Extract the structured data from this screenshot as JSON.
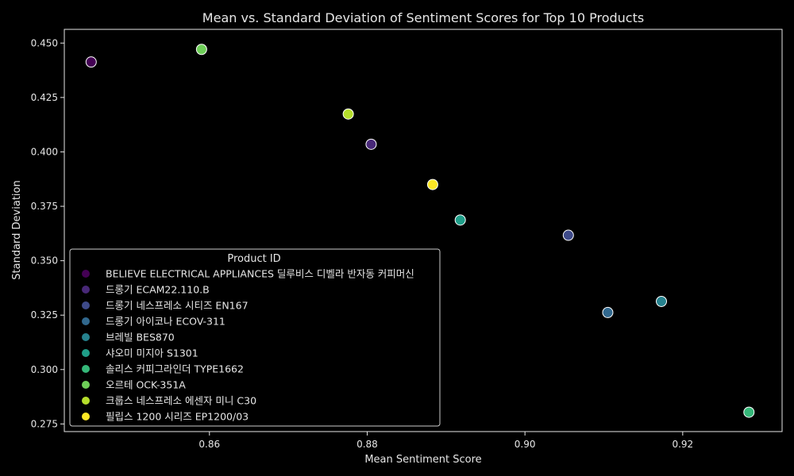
{
  "chart_data": {
    "type": "scatter",
    "title": "Mean vs. Standard Deviation of Sentiment Scores for Top 10 Products",
    "xlabel": "Mean Sentiment Score",
    "ylabel": "Standard Deviation",
    "xlim": [
      0.8416,
      0.9326
    ],
    "ylim": [
      0.2715,
      0.4563
    ],
    "x_ticks": [
      0.86,
      0.88,
      0.9,
      0.92
    ],
    "x_tick_labels": [
      "0.86",
      "0.88",
      "0.90",
      "0.92"
    ],
    "y_ticks": [
      0.275,
      0.3,
      0.325,
      0.35,
      0.375,
      0.4,
      0.425,
      0.45
    ],
    "y_tick_labels": [
      "0.275",
      "0.300",
      "0.325",
      "0.350",
      "0.375",
      "0.400",
      "0.425",
      "0.450"
    ],
    "grid": false,
    "legend_title": "Product ID",
    "legend_position": "bottom-left",
    "series": [
      {
        "name": "BELIEVE ELECTRICAL APPLIANCES 딜루비스 디벨라 반자동 커피머신",
        "color": "#440154",
        "x": [
          0.845
        ],
        "y": [
          0.4413
        ]
      },
      {
        "name": "드롱기 ECAM22.110.B",
        "color": "#482878",
        "x": [
          0.8805
        ],
        "y": [
          0.4035
        ]
      },
      {
        "name": "드롱기 네스프레소 시티즈 EN167",
        "color": "#3e4a89",
        "x": [
          0.9055
        ],
        "y": [
          0.3617
        ]
      },
      {
        "name": "드롱기 아이코나 ECOV-311",
        "color": "#31688e",
        "x": [
          0.9105
        ],
        "y": [
          0.3262
        ]
      },
      {
        "name": "브레빌 BES870",
        "color": "#26828e",
        "x": [
          0.9173
        ],
        "y": [
          0.3313
        ]
      },
      {
        "name": "샤오미 미지아 S1301",
        "color": "#1f9e89",
        "x": [
          0.8918
        ],
        "y": [
          0.3687
        ]
      },
      {
        "name": "솔리스 커피그라인더 TYPE1662",
        "color": "#35b779",
        "x": [
          0.9284
        ],
        "y": [
          0.2804
        ]
      },
      {
        "name": "오르테 OCK-351A",
        "color": "#6ece58",
        "x": [
          0.859
        ],
        "y": [
          0.4471
        ]
      },
      {
        "name": "크룹스 네스프레소 에센자 미니 C30",
        "color": "#b5de2b",
        "x": [
          0.8776
        ],
        "y": [
          0.4174
        ]
      },
      {
        "name": "필립스 1200 시리즈 EP1200/03",
        "color": "#fde725",
        "x": [
          0.8883
        ],
        "y": [
          0.385
        ]
      }
    ]
  }
}
